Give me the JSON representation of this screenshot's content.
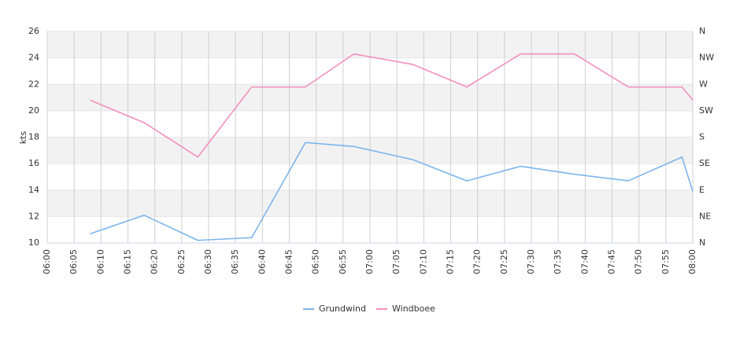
{
  "chart_data": {
    "type": "line",
    "y_label": "kts",
    "x": [
      "06:08",
      "06:18",
      "06:28",
      "06:38",
      "06:48",
      "06:57",
      "07:08",
      "07:18",
      "07:28",
      "07:38",
      "07:48",
      "07:58",
      "08:00"
    ],
    "series": [
      {
        "name": "Grundwind",
        "color": "#7cb5ec",
        "values": [
          10.7,
          12.1,
          10.2,
          10.4,
          17.6,
          17.3,
          16.3,
          14.7,
          15.8,
          15.2,
          14.7,
          16.5,
          13.9
        ]
      },
      {
        "name": "Windboee",
        "color": "#f28fbf",
        "values": [
          20.8,
          19.1,
          16.5,
          21.8,
          21.8,
          24.3,
          23.5,
          21.8,
          24.3,
          24.3,
          21.8,
          21.8,
          20.8
        ]
      }
    ],
    "xlim": [
      "06:00",
      "08:00"
    ],
    "xticks": [
      "06:00",
      "06:05",
      "06:10",
      "06:15",
      "06:20",
      "06:25",
      "06:30",
      "06:35",
      "06:40",
      "06:45",
      "06:50",
      "06:55",
      "07:00",
      "07:05",
      "07:10",
      "07:15",
      "07:20",
      "07:25",
      "07:30",
      "07:35",
      "07:40",
      "07:45",
      "07:50",
      "07:55",
      "08:00"
    ],
    "ylim": [
      10,
      26
    ],
    "yticks": [
      10,
      12,
      14,
      16,
      18,
      20,
      22,
      24,
      26
    ],
    "y2lim": [
      0,
      360
    ],
    "y2ticks": [
      {
        "value": 0,
        "label": "N"
      },
      {
        "value": 45,
        "label": "NE"
      },
      {
        "value": 90,
        "label": "E"
      },
      {
        "value": 135,
        "label": "SE"
      },
      {
        "value": 180,
        "label": "S"
      },
      {
        "value": 225,
        "label": "SW"
      },
      {
        "value": 270,
        "label": "W"
      },
      {
        "value": 315,
        "label": "NW"
      },
      {
        "value": 360,
        "label": "N"
      }
    ],
    "grid": true,
    "legend": "bottom"
  }
}
